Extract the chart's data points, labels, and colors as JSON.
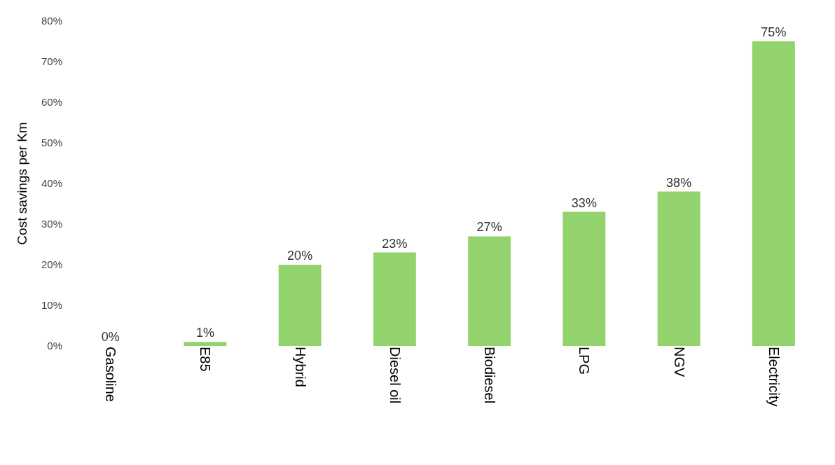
{
  "chart_data": {
    "type": "bar",
    "ylabel": "Cost savings per Km",
    "categories": [
      "Gasoline",
      "E85",
      "Hybrid",
      "Diesel oil",
      "Biodiesel",
      "LPG",
      "NGV",
      "Electricity"
    ],
    "values": [
      0,
      1,
      20,
      23,
      27,
      33,
      38,
      75
    ],
    "value_labels": [
      "0%",
      "1%",
      "20%",
      "23%",
      "27%",
      "33%",
      "38%",
      "75%"
    ],
    "color": "#92d36e",
    "ylim": [
      0,
      80
    ],
    "yticks": [
      {
        "value": 0,
        "label": "0%"
      },
      {
        "value": 10,
        "label": "10%"
      },
      {
        "value": 20,
        "label": "20%"
      },
      {
        "value": 30,
        "label": "30%"
      },
      {
        "value": 40,
        "label": "40%"
      },
      {
        "value": 50,
        "label": "50%"
      },
      {
        "value": 60,
        "label": "60%"
      },
      {
        "value": 70,
        "label": "70%"
      },
      {
        "value": 80,
        "label": "80%"
      }
    ]
  }
}
